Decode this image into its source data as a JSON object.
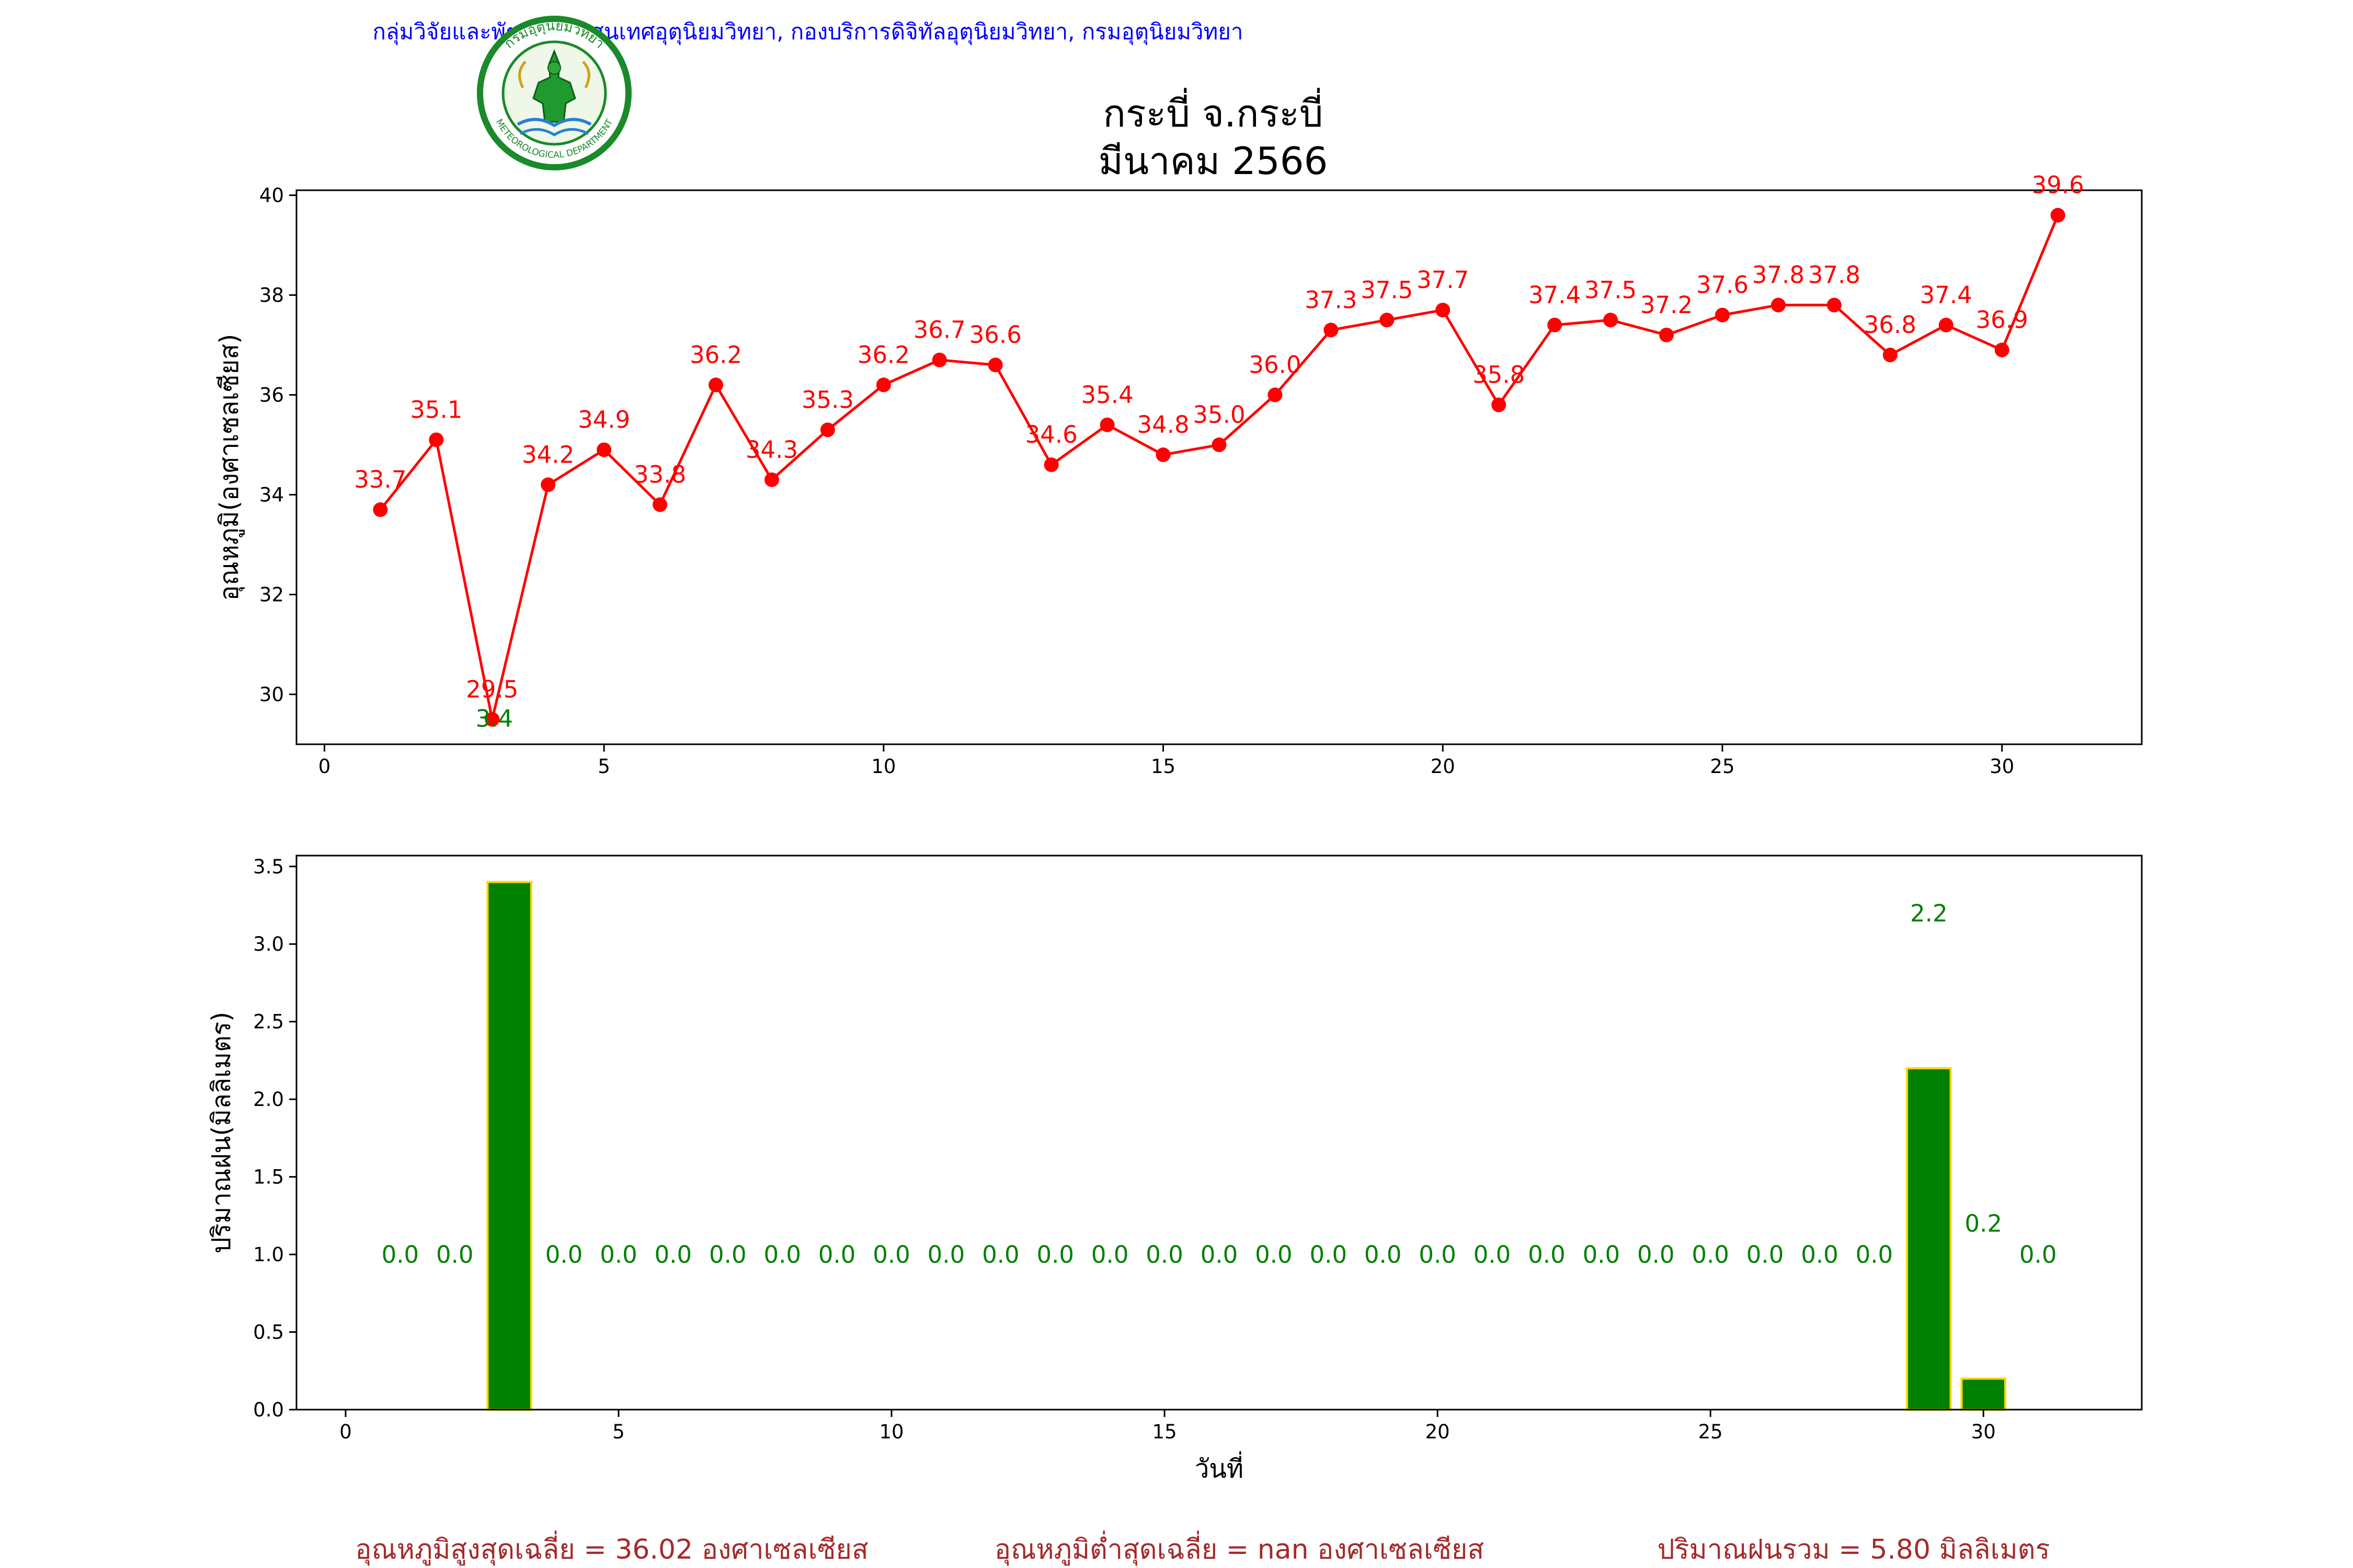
{
  "header": {
    "text": "กลุ่มวิจัยและพัฒนาสารสนเทศอุตุนิยมวิทยา, กองบริการดิจิทัลอุตุนิยมวิทยา, กรมอุตุนิยมวิทยา",
    "color": "#0000ff"
  },
  "logo": {
    "ring_text_top": "กรมอุตุนิยมวิทยา",
    "ring_text_bottom": "METEOROLOGICAL DEPARTMENT",
    "color": "#1a8a2a",
    "accent": "#d4a017"
  },
  "title": {
    "line1": "กระบี่ จ.กระบี่",
    "line2": "มีนาคม 2566"
  },
  "footer": {
    "avg_max": "อุณหภูมิสูงสุดเฉลี่ย = 36.02 องศาเซลเซียส",
    "avg_min": "อุณหภูมิต่ำสุดเฉลี่ย = nan องศาเซลเซียส",
    "total_rain": "ปริมาณฝนรวม = 5.80 มิลลิเมตร",
    "color": "#a52a2a"
  },
  "chart_data": [
    {
      "type": "line",
      "ylabel": "อุณหภูมิ(องศาเซลเซียส)",
      "xlabel": "",
      "x": [
        1,
        2,
        3,
        4,
        5,
        6,
        7,
        8,
        9,
        10,
        11,
        12,
        13,
        14,
        15,
        16,
        17,
        18,
        19,
        20,
        21,
        22,
        23,
        24,
        25,
        26,
        27,
        28,
        29,
        30,
        31
      ],
      "values": [
        33.7,
        35.1,
        29.5,
        34.2,
        34.9,
        33.8,
        36.2,
        34.3,
        35.3,
        36.2,
        36.7,
        36.6,
        34.6,
        35.4,
        34.8,
        35.0,
        36.0,
        37.3,
        37.5,
        37.7,
        35.8,
        37.4,
        37.5,
        37.2,
        37.6,
        37.8,
        37.8,
        36.8,
        37.4,
        36.9,
        39.6
      ],
      "labels": [
        "33.7",
        "35.1",
        "29.5",
        "34.2",
        "34.9",
        "33.8",
        "36.2",
        "34.3",
        "35.3",
        "36.2",
        "36.7",
        "36.6",
        "34.6",
        "35.4",
        "34.8",
        "35.0",
        "36.0",
        "37.3",
        "37.5",
        "37.7",
        "35.8",
        "37.4",
        "37.5",
        "37.2",
        "37.6",
        "37.8",
        "37.8",
        "36.8",
        "37.4",
        "36.9",
        "39.6"
      ],
      "extra_label": {
        "x": 3,
        "y": 29.5,
        "text": "3.4",
        "color": "#008000"
      },
      "xlim": [
        -0.5,
        32.5
      ],
      "ylim": [
        29.0,
        40.1
      ],
      "xticks": [
        0,
        5,
        10,
        15,
        20,
        25,
        30
      ],
      "yticks": [
        30,
        32,
        34,
        36,
        38,
        40
      ],
      "color": "#ff0000",
      "grid": false
    },
    {
      "type": "bar",
      "ylabel": "ปริมาณฝน(มิลลิเมตร)",
      "xlabel": "วันที่",
      "x": [
        1,
        2,
        3,
        4,
        5,
        6,
        7,
        8,
        9,
        10,
        11,
        12,
        13,
        14,
        15,
        16,
        17,
        18,
        19,
        20,
        21,
        22,
        23,
        24,
        25,
        26,
        27,
        28,
        29,
        30,
        31
      ],
      "values": [
        0,
        0,
        3.4,
        0,
        0,
        0,
        0,
        0,
        0,
        0,
        0,
        0,
        0,
        0,
        0,
        0,
        0,
        0,
        0,
        0,
        0,
        0,
        0,
        0,
        0,
        0,
        0,
        0,
        2.2,
        0.2,
        0
      ],
      "labels": [
        "0.0",
        "0.0",
        "",
        "0.0",
        "0.0",
        "0.0",
        "0.0",
        "0.0",
        "0.0",
        "0.0",
        "0.0",
        "0.0",
        "0.0",
        "0.0",
        "0.0",
        "0.0",
        "0.0",
        "0.0",
        "0.0",
        "0.0",
        "0.0",
        "0.0",
        "0.0",
        "0.0",
        "0.0",
        "0.0",
        "0.0",
        "0.0",
        "2.2",
        "0.2",
        "0.0"
      ],
      "xlim": [
        -0.9,
        32.9
      ],
      "ylim": [
        0,
        3.57
      ],
      "xticks": [
        0,
        5,
        10,
        15,
        20,
        25,
        30
      ],
      "yticks": [
        0.0,
        0.5,
        1.0,
        1.5,
        2.0,
        2.5,
        3.0,
        3.5
      ],
      "ytick_labels": [
        "0.0",
        "0.5",
        "1.0",
        "1.5",
        "2.0",
        "2.5",
        "3.0",
        "3.5"
      ],
      "color": "#008000",
      "edge_color": "#ffd700",
      "label_color": "#008000",
      "grid": false
    }
  ]
}
